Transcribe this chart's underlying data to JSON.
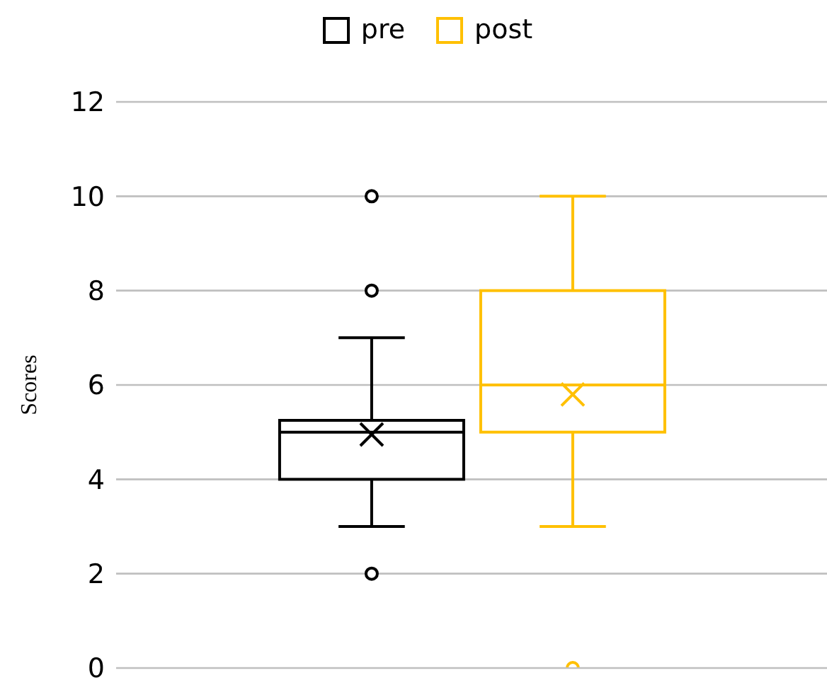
{
  "chart_data": {
    "type": "box",
    "categories": [
      null
    ],
    "series": [
      {
        "name": "pre",
        "color": "#000000",
        "boxes": [
          {
            "low": 3,
            "q1": 4,
            "median": 5,
            "q3": 5.25,
            "high": 7,
            "mean": 4.95,
            "outliers": [
              2,
              8,
              10
            ]
          }
        ]
      },
      {
        "name": "post",
        "color": "#ffc000",
        "boxes": [
          {
            "low": 3,
            "q1": 5,
            "median": 6,
            "q3": 8,
            "high": 10,
            "mean": 5.8,
            "outliers": [
              0
            ]
          }
        ]
      }
    ],
    "ylim": [
      0,
      12
    ],
    "yticks": [
      0,
      2,
      4,
      6,
      8,
      10,
      12
    ],
    "ylabel": "Scores",
    "grid": "y",
    "legend": "top"
  }
}
